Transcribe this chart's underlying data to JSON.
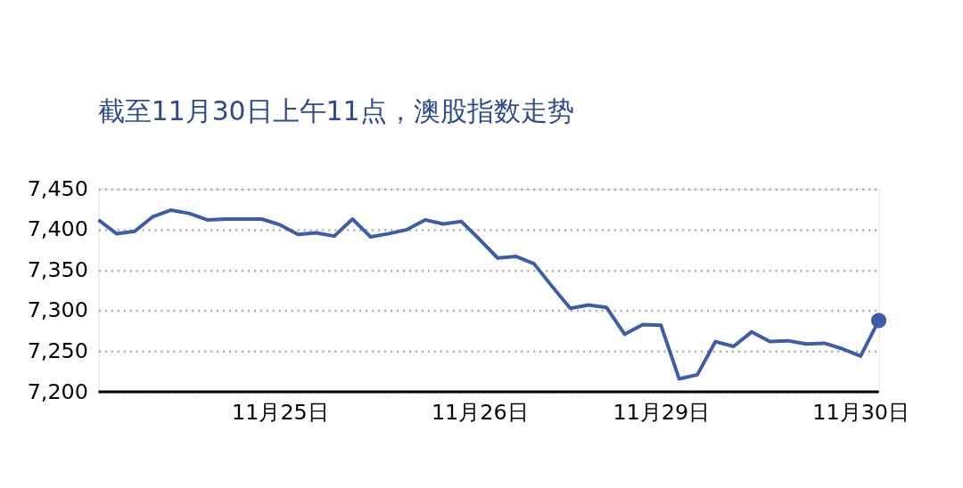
{
  "chart_data": {
    "type": "line",
    "title": "截至11月30日上午11点，澳股指数走势",
    "categories": [
      null,
      null,
      null,
      null,
      null,
      null,
      null,
      null,
      null,
      null,
      "11月25日",
      null,
      null,
      null,
      null,
      null,
      null,
      null,
      null,
      null,
      null,
      "11月26日",
      null,
      null,
      null,
      null,
      null,
      null,
      null,
      null,
      null,
      "11月29日",
      null,
      null,
      null,
      null,
      null,
      null,
      null,
      null,
      null,
      null,
      "11月30日",
      null
    ],
    "series": [
      {
        "color": "#3f5ca8",
        "values": [
          7412,
          7395,
          7398,
          7416,
          7424,
          7420,
          7412,
          7413,
          7413,
          7413,
          7406,
          7394,
          7396,
          7392,
          7413,
          7391,
          7395,
          7400,
          7412,
          7407,
          7410,
          7388,
          7365,
          7367,
          7358,
          7330,
          7303,
          7307,
          7304,
          7271,
          7283,
          7282,
          7216,
          7221,
          7262,
          7256,
          7274,
          7262,
          7263,
          7259,
          7260,
          7253,
          7244,
          7288
        ]
      }
    ],
    "ylim": [
      7200,
      7450
    ],
    "yticks": [
      {
        "value": 7200,
        "label": "7,200"
      },
      {
        "value": 7250,
        "label": "7,250"
      },
      {
        "value": 7300,
        "label": "7,300"
      },
      {
        "value": 7350,
        "label": "7,350"
      },
      {
        "value": 7400,
        "label": "7,400"
      },
      {
        "value": 7450,
        "label": "7,450"
      }
    ],
    "grid": "y",
    "line_style": "solid"
  }
}
